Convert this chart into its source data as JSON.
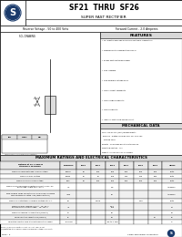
{
  "title": "SF21  THRU  SF26",
  "subtitle": "SUPER FAST RECTIFIER",
  "spec_line1": "Reverse Voltage - 50 to 400 Volts",
  "spec_line2": "Forward Current - 2.0 Amperes",
  "features_title": "FEATURES",
  "features": [
    "For plastic package surface mountable, Laboratory",
    "Flammability Classification 94V-0",
    "Super fast switching speed",
    "Low leakage",
    "Low forward voltage drop",
    "High current capability",
    "High surge capability",
    "High reliability",
    "Ideal for switching mode circuit"
  ],
  "mech_title": "MECHANICAL DATA",
  "mech_data": [
    "Case : DO-214AC (SMA) molded plastic",
    "Terminals : Plated solderable per MIL-STD-750",
    "   Method 2026",
    "Polarity : Color band denotes cathode end",
    "Mounting Position : Any",
    "Weight : 0.0013 ounces, 0.4 grams"
  ],
  "table_title": "MAXIMUM RATINGS AND ELECTRICAL CHARACTERISTICS",
  "col_headers": [
    "Ratings at 25°C unless otherwise\nspecified",
    "SYMBOLS",
    "SF21",
    "SF22",
    "SF23",
    "SF24",
    "SF25",
    "SF26",
    "UNITS"
  ],
  "rows": [
    [
      "Maximum recurrent peak reverse voltage",
      "VRRM",
      "50",
      "100",
      "150",
      "200",
      "300",
      "400",
      "Volts"
    ],
    [
      "Maximum RMS voltage",
      "VRMS",
      "35",
      "70",
      "105",
      "140",
      "210",
      "280",
      "Volts"
    ],
    [
      "Maximum DC blocking voltage",
      "VDC",
      "50",
      "100",
      "150",
      "200",
      "300",
      "400",
      "Volts"
    ],
    [
      "Maximum average forward rectified current 0.375\" on\nboard lead length at TA=55°C",
      "IO",
      "",
      "",
      "2.0",
      "",
      "",
      "",
      "Amperes"
    ],
    [
      "Peak forward surge current 8.3ms single half sine-wave\nsuperimposed on rated load (JEDEC Method)",
      "IFSM",
      "",
      "",
      "70",
      "",
      "",
      "",
      "Amperes"
    ],
    [
      "Maximum instantaneous forward voltage at 2.0 A",
      "VF",
      "",
      "0.925",
      "",
      "",
      "1.25",
      "",
      "Volts"
    ],
    [
      "Maximum RMS reverse current    Ta=25°C\nat rated DC blocking voltage    Ta=100°C",
      "IR",
      "",
      "",
      "0.01\n100",
      "",
      "",
      "",
      "μA"
    ],
    [
      "Maximum reverse recovery time (NOTE 1)",
      "trr",
      "",
      "",
      "50",
      "",
      "",
      "",
      "nS"
    ],
    [
      "Typical junction capacitance (NOTE 2)",
      "CJ",
      "",
      "",
      "15",
      "",
      "",
      "10",
      "pF"
    ],
    [
      "Operating junction and storage temperature range",
      "TJ, TSTG",
      "",
      "",
      "-55 to +150",
      "",
      "",
      "",
      "°C"
    ]
  ],
  "note_text": "NOTE: (1) Measured with IF=0.5A, IR=1.0A, IRR=0.25A\n(2)Measured at 1.0 MHz and applied reverse voltage of 4.0 Volts",
  "footer_left": "SF2X - 3",
  "footer_right": "Caree Technology Corporation",
  "bg_color": "#ffffff",
  "logo_color": "#1a3a6b",
  "grid_color": "#000000",
  "header_gray": "#d8d8d8",
  "row_alt_color": "#f0f0f0"
}
